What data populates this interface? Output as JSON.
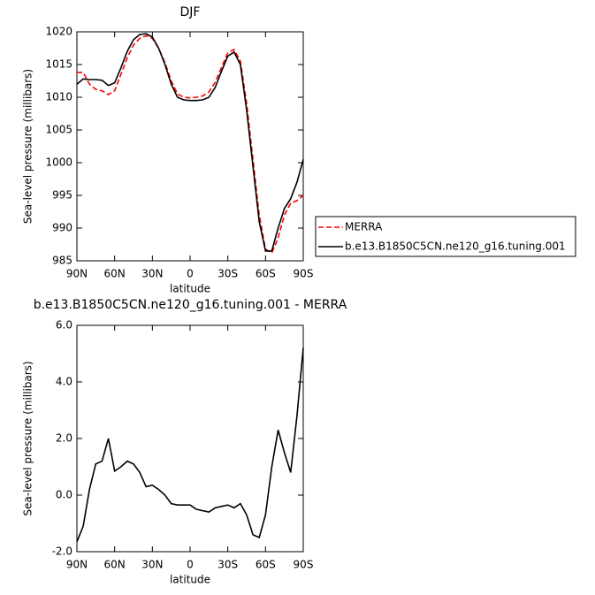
{
  "chart_data": [
    {
      "type": "line",
      "title": "DJF",
      "y_label": "Sea-level pressure (millibars)",
      "x_label": "latitude",
      "x": [
        90,
        85,
        80,
        75,
        70,
        65,
        60,
        55,
        50,
        45,
        40,
        35,
        30,
        25,
        20,
        15,
        10,
        5,
        0,
        -5,
        -10,
        -15,
        -20,
        -25,
        -30,
        -35,
        -40,
        -45,
        -50,
        -55,
        -60,
        -65,
        -70,
        -75,
        -80,
        -85,
        -90
      ],
      "xlim": [
        90,
        -90
      ],
      "xticks": [
        {
          "value": 90,
          "label": "90N"
        },
        {
          "value": 60,
          "label": "60N"
        },
        {
          "value": 30,
          "label": "30N"
        },
        0,
        {
          "value": -30,
          "label": "30S"
        },
        {
          "value": -60,
          "label": "60S"
        },
        {
          "value": -90,
          "label": "90S"
        }
      ],
      "ylim": [
        985,
        1020
      ],
      "yticks": [
        985,
        990,
        995,
        1000,
        1005,
        1010,
        1015,
        1020
      ],
      "legend": "right",
      "series": [
        {
          "name": "MERRA",
          "color": "#ff0000",
          "line_style": "dashed",
          "values": [
            1013.8,
            1013.8,
            1012,
            1011.2,
            1011,
            1010.4,
            1011,
            1013.5,
            1016,
            1018,
            1019,
            1019.4,
            1019,
            1017.5,
            1015.3,
            1012.5,
            1010.5,
            1010,
            1009.9,
            1010,
            1010.2,
            1010.8,
            1012.3,
            1014.6,
            1016.8,
            1017.3,
            1015.5,
            1009,
            1000.5,
            992,
            986.8,
            986.2,
            988.5,
            992,
            993.8,
            994.2,
            995
          ]
        },
        {
          "name": "b.e13.B1850C5CN.ne120_g16.tuning.001",
          "color": "#000000",
          "line_style": "solid",
          "values": [
            1012,
            1012.8,
            1012.7,
            1012.7,
            1012.6,
            1011.8,
            1012.2,
            1014.5,
            1017,
            1018.8,
            1019.6,
            1019.7,
            1019.2,
            1017.5,
            1015,
            1012,
            1010,
            1009.6,
            1009.5,
            1009.5,
            1009.6,
            1010,
            1011.5,
            1014,
            1016.3,
            1016.9,
            1015,
            1008,
            999.5,
            991,
            986.5,
            986.5,
            990,
            993,
            994.5,
            997,
            1000.5
          ]
        }
      ]
    },
    {
      "type": "line",
      "title": "b.e13.B1850C5CN.ne120_g16.tuning.001 - MERRA",
      "y_label": "Sea-level pressure (millibars)",
      "x_label": "latitude",
      "x": [
        90,
        85,
        80,
        75,
        70,
        65,
        60,
        55,
        50,
        45,
        40,
        35,
        30,
        25,
        20,
        15,
        10,
        5,
        0,
        -5,
        -10,
        -15,
        -20,
        -25,
        -30,
        -35,
        -40,
        -45,
        -50,
        -55,
        -60,
        -65,
        -70,
        -75,
        -80,
        -85,
        -90
      ],
      "xlim": [
        90,
        -90
      ],
      "xticks": [
        {
          "value": 90,
          "label": "90N"
        },
        {
          "value": 60,
          "label": "60N"
        },
        {
          "value": 30,
          "label": "30N"
        },
        0,
        {
          "value": -30,
          "label": "30S"
        },
        {
          "value": -60,
          "label": "60S"
        },
        {
          "value": -90,
          "label": "90S"
        }
      ],
      "ylim": [
        -2,
        6
      ],
      "yticks": [
        {
          "value": -2,
          "label": "-2.0"
        },
        {
          "value": 0,
          "label": "0.0"
        },
        {
          "value": 2,
          "label": "2.0"
        },
        {
          "value": 4,
          "label": "4.0"
        },
        {
          "value": 6,
          "label": "6.0"
        }
      ],
      "series": [
        {
          "color": "#000000",
          "line_style": "solid",
          "values": [
            -1.65,
            -1.1,
            0.2,
            1.1,
            1.2,
            2.0,
            0.85,
            1.0,
            1.2,
            1.1,
            0.8,
            0.3,
            0.35,
            0.2,
            0.0,
            -0.3,
            -0.35,
            -0.35,
            -0.35,
            -0.5,
            -0.55,
            -0.6,
            -0.45,
            -0.4,
            -0.35,
            -0.45,
            -0.3,
            -0.7,
            -1.4,
            -1.5,
            -0.7,
            1.0,
            2.3,
            1.5,
            0.8,
            2.8,
            5.2
          ]
        }
      ]
    }
  ]
}
